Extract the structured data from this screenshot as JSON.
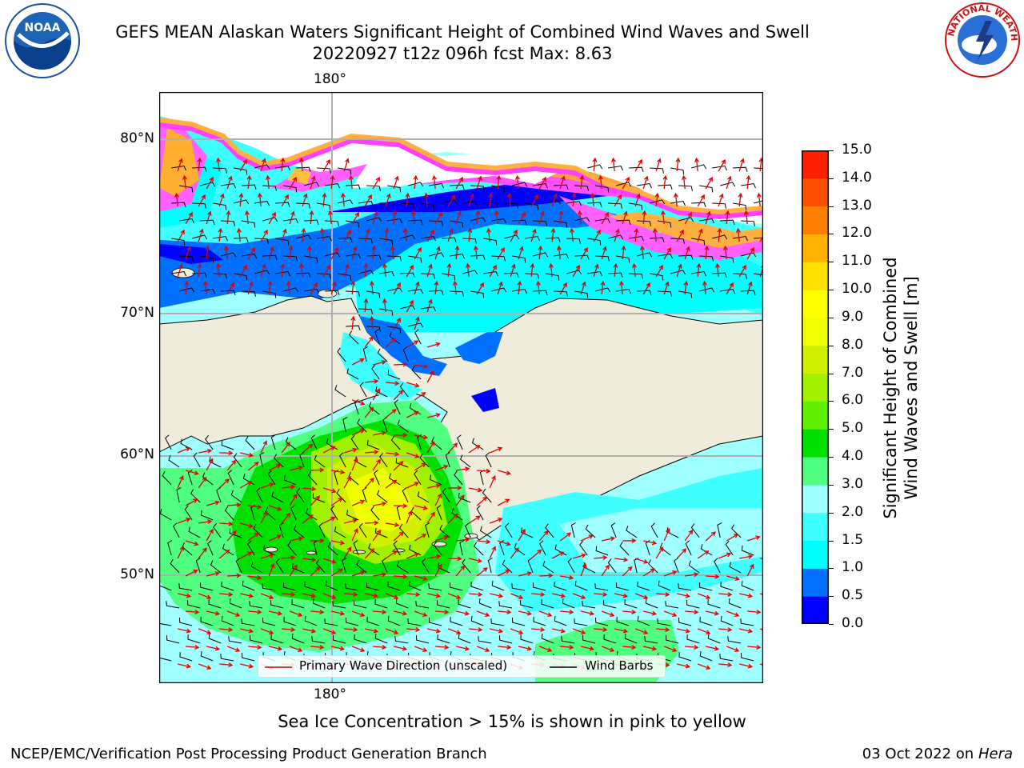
{
  "title": {
    "line1": "GEFS MEAN Alaskan Waters Significant Height of Combined Wind Waves and Swell",
    "line2": "20220927 t12z 096h fcst   Max: 8.63"
  },
  "map": {
    "lon_label_top": "180°",
    "lon_label_bottom": "180°",
    "lat_labels": [
      "80°N",
      "70°N",
      "60°N",
      "50°N"
    ],
    "legend": {
      "wave_dir": "Primary Wave Direction (unscaled)",
      "wind_barbs": "Wind Barbs"
    },
    "colors": {
      "land": "#efecdc",
      "wave_arrow": "#e00000",
      "barb": "#000000"
    }
  },
  "colorbar": {
    "ticks": [
      "15.0",
      "14.0",
      "13.0",
      "12.0",
      "11.0",
      "10.0",
      "9.0",
      "8.0",
      "7.0",
      "6.0",
      "5.0",
      "4.0",
      "3.0",
      "2.0",
      "1.5",
      "1.0",
      "0.5",
      "0.0"
    ],
    "colors": [
      "#0000ff",
      "#0070ff",
      "#00ffff",
      "#40ffff",
      "#a0ffff",
      "#50ff80",
      "#00e000",
      "#60f000",
      "#a0f000",
      "#d0f000",
      "#f0ff00",
      "#ffff00",
      "#ffe000",
      "#ffb000",
      "#ff8000",
      "#ff5000",
      "#ff2000",
      "#ff0000"
    ],
    "label_line1": "Significant Height of Combined",
    "label_line2": "Wind Waves and Swell [m]"
  },
  "note": "Sea Ice Concentration > 15% is shown in pink to yellow",
  "footer": {
    "left": "NCEP/EMC/Verification Post Processing Product Generation Branch",
    "date": "03 Oct 2022 on",
    "machine": "Hera"
  },
  "logos": {
    "noaa": "NOAA",
    "nws_ring": "NATIONAL WEATHER SERVICE"
  }
}
